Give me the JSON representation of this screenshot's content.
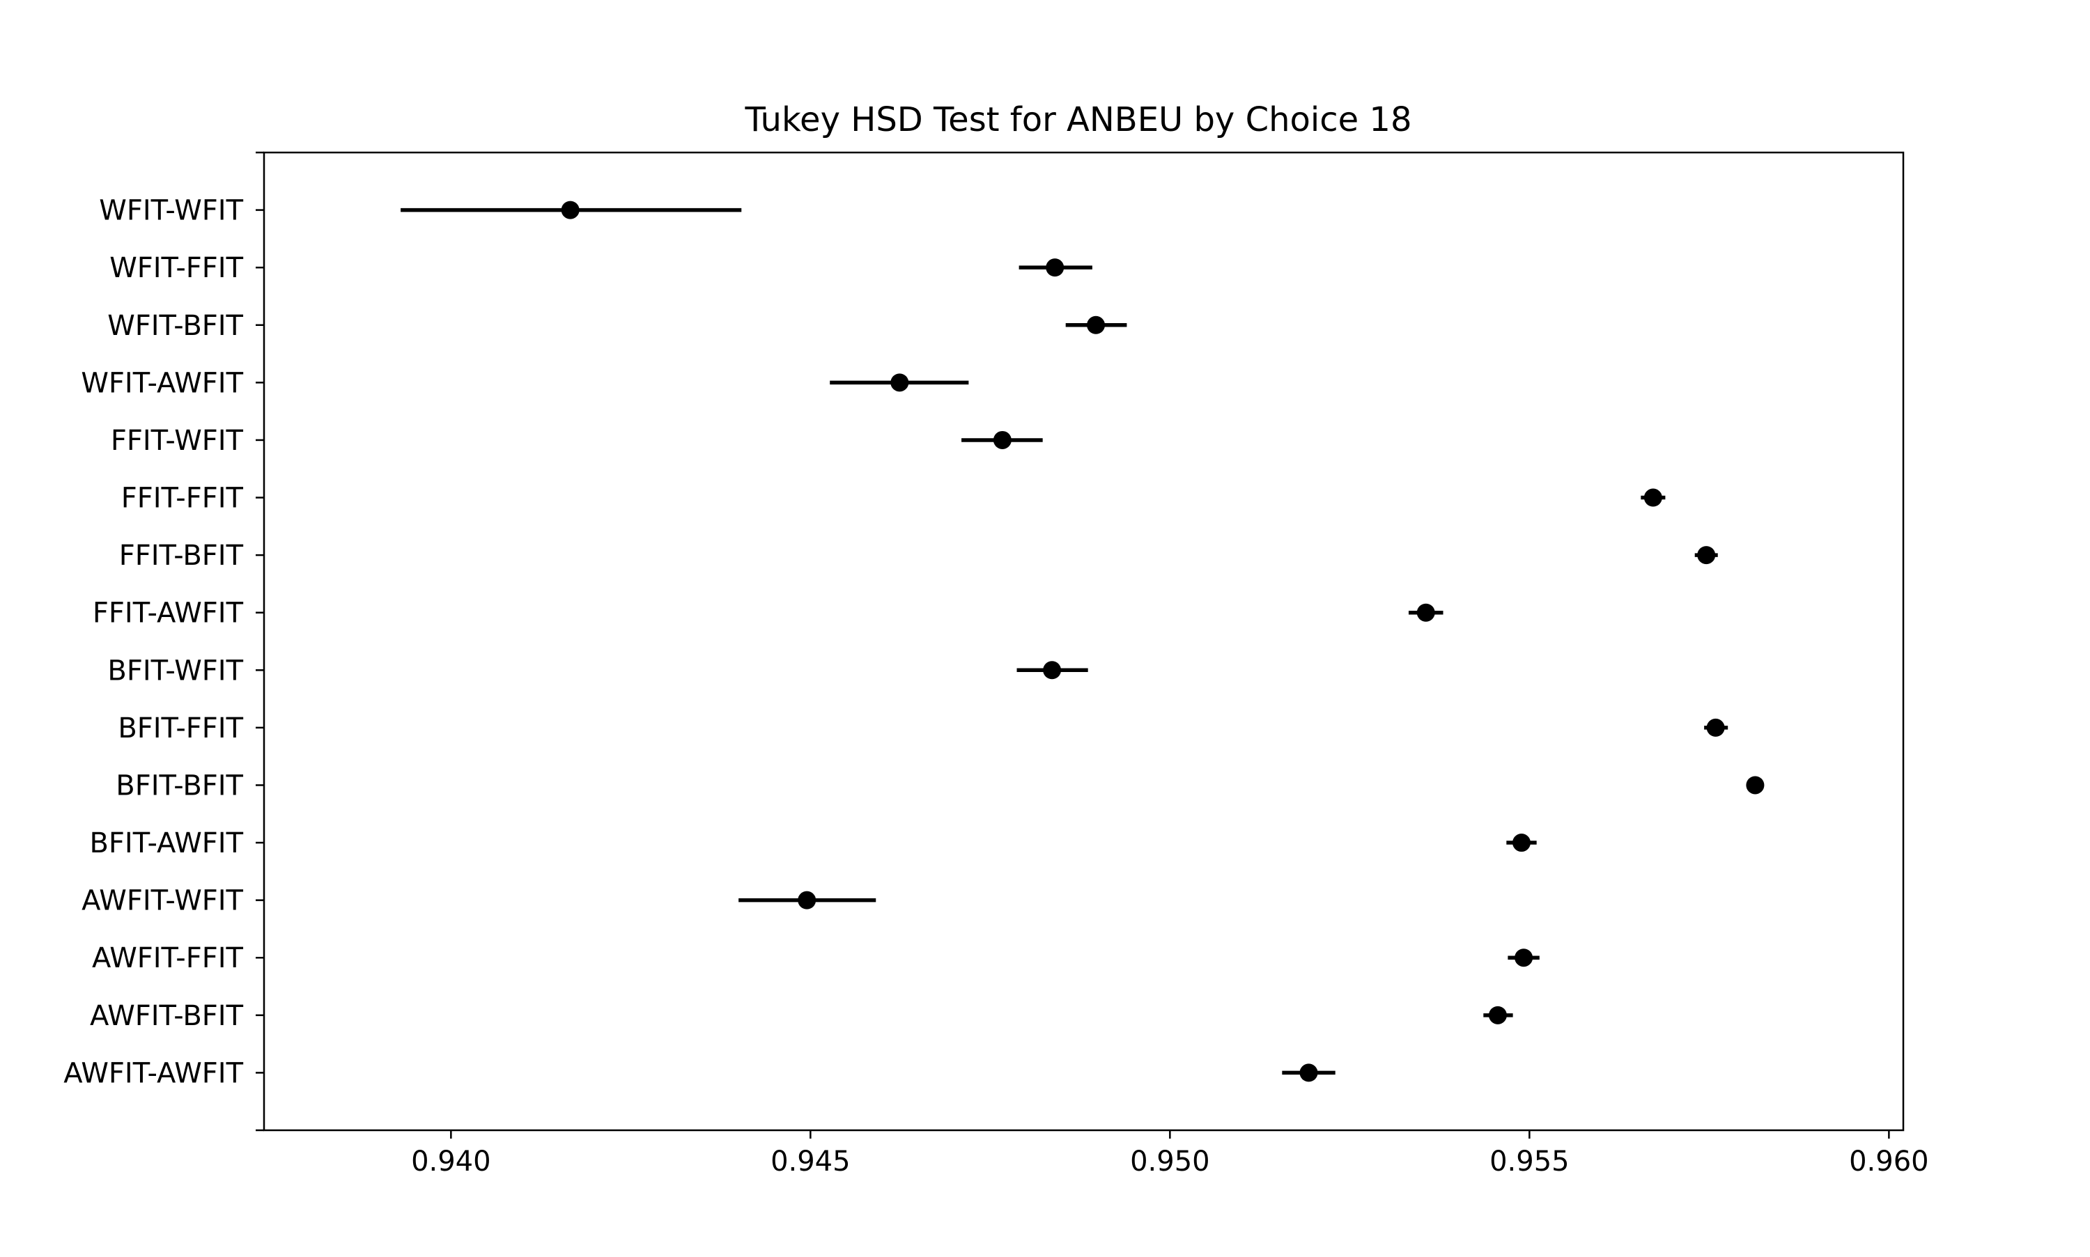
{
  "chart_data": {
    "type": "scatter",
    "subtype": "tukey-hsd-interval",
    "title": "Tukey HSD Test for ANBEU by Choice 18",
    "xlabel": "",
    "ylabel": "",
    "xlim": [
      0.9374,
      0.9602
    ],
    "x_ticks": [
      0.94,
      0.945,
      0.95,
      0.955,
      0.96
    ],
    "x_tick_labels": [
      "0.940",
      "0.945",
      "0.950",
      "0.955",
      "0.960"
    ],
    "grid": false,
    "categories": [
      "WFIT-WFIT",
      "WFIT-FFIT",
      "WFIT-BFIT",
      "WFIT-AWFIT",
      "FFIT-WFIT",
      "FFIT-FFIT",
      "FFIT-BFIT",
      "FFIT-AWFIT",
      "BFIT-WFIT",
      "BFIT-FFIT",
      "BFIT-BFIT",
      "BFIT-AWFIT",
      "AWFIT-WFIT",
      "AWFIT-FFIT",
      "AWFIT-BFIT",
      "AWFIT-AWFIT"
    ],
    "means": [
      0.94166,
      0.9484,
      0.94897,
      0.94624,
      0.94767,
      0.95672,
      0.95746,
      0.95356,
      0.94836,
      0.95759,
      0.95814,
      0.95489,
      0.94495,
      0.95492,
      0.95456,
      0.95193
    ],
    "lower": [
      0.9393,
      0.9479,
      0.94855,
      0.94527,
      0.9471,
      0.95655,
      0.9573,
      0.95332,
      0.94787,
      0.95743,
      0.95803,
      0.95468,
      0.944,
      0.9547,
      0.95436,
      0.95156
    ],
    "upper": [
      0.94404,
      0.94892,
      0.9494,
      0.9472,
      0.94823,
      0.95689,
      0.95762,
      0.9538,
      0.94886,
      0.95776,
      0.95826,
      0.9551,
      0.94591,
      0.95514,
      0.95477,
      0.9523
    ],
    "colors": {
      "marker": "#000000",
      "line": "#000000",
      "axes": "#000000",
      "background": "#ffffff"
    }
  }
}
